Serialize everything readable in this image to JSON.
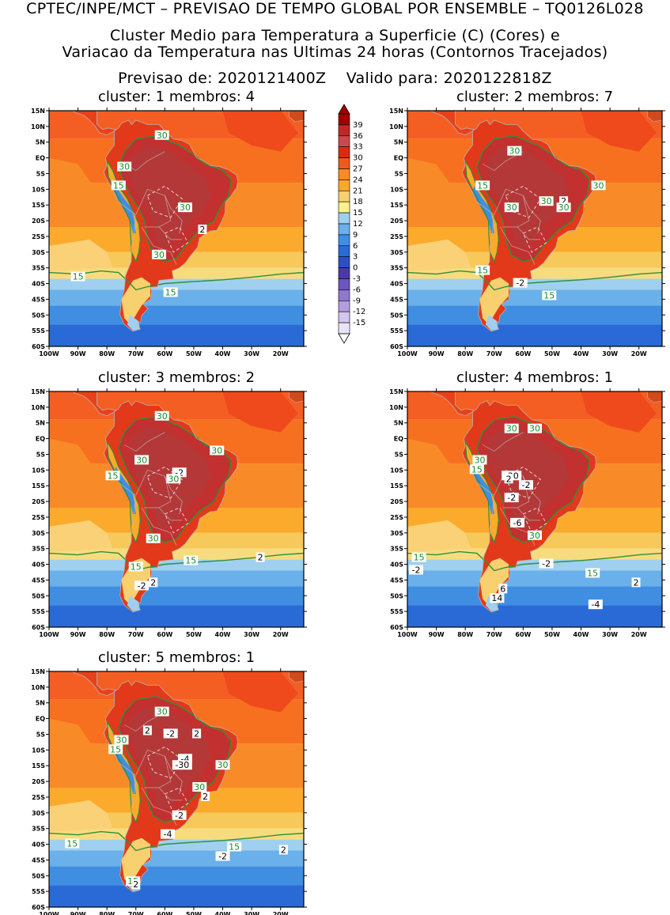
{
  "header": {
    "line1": "CPTEC/INPE/MCT – PREVISAO DE TEMPO GLOBAL POR ENSEMBLE – TQ0126L028",
    "line2": "Cluster Medio para Temperatura a Superficie (C) (Cores) e",
    "line3": "Variacao da Temperatura nas Ultimas 24 horas (Contornos Tracejados)",
    "forecast_label": "Previsao de: 2020121400Z",
    "valid_label": "Valido para: 2020122818Z"
  },
  "axes": {
    "lat_labels": [
      "15N",
      "10N",
      "5N",
      "EQ",
      "5S",
      "10S",
      "15S",
      "20S",
      "25S",
      "30S",
      "35S",
      "40S",
      "45S",
      "50S",
      "55S",
      "60S"
    ],
    "lon_labels": [
      "100W",
      "90W",
      "80W",
      "70W",
      "60W",
      "50W",
      "40W",
      "30W",
      "20W"
    ]
  },
  "colorbar": {
    "levels": [
      "39",
      "36",
      "33",
      "30",
      "27",
      "24",
      "21",
      "18",
      "15",
      "12",
      "9",
      "6",
      "3",
      "0",
      "-3",
      "-6",
      "-9",
      "-12",
      "-15"
    ],
    "colors": [
      "#a00000",
      "#c02828",
      "#c84a4a",
      "#dc2a12",
      "#f2581e",
      "#fb8a26",
      "#fba92a",
      "#f7d070",
      "#fbf28a",
      "#9fd0f0",
      "#6ab0ea",
      "#3f8ee2",
      "#2a6ad6",
      "#2e4fc4",
      "#4a3aa8",
      "#6e55bf",
      "#9077cf",
      "#b39de0",
      "#d4c6ee",
      "#ebe4f6"
    ]
  },
  "panels": [
    {
      "title": "cluster:  1   membros:  4",
      "labels": [
        {
          "t": "30",
          "lon": -61,
          "lat": 7,
          "c": "g"
        },
        {
          "t": "30",
          "lon": -74,
          "lat": -3,
          "c": "g"
        },
        {
          "t": "15",
          "lon": -76,
          "lat": -9,
          "c": "g"
        },
        {
          "t": "30",
          "lon": -53,
          "lat": -16,
          "c": "g"
        },
        {
          "t": "2",
          "lon": -47,
          "lat": -23,
          "c": "w"
        },
        {
          "t": "30",
          "lon": -62,
          "lat": -31,
          "c": "g"
        },
        {
          "t": "15",
          "lon": -90,
          "lat": -38,
          "c": "g"
        },
        {
          "t": "15",
          "lon": -58,
          "lat": -43,
          "c": "g"
        }
      ]
    },
    {
      "title": "cluster:  2   membros:  7",
      "labels": [
        {
          "t": "30",
          "lon": -63,
          "lat": 2,
          "c": "g"
        },
        {
          "t": "15",
          "lon": -74,
          "lat": -9,
          "c": "g"
        },
        {
          "t": "30",
          "lon": -34,
          "lat": -9,
          "c": "g"
        },
        {
          "t": "2",
          "lon": -46,
          "lat": -14,
          "c": "w"
        },
        {
          "t": "30",
          "lon": -52,
          "lat": -14,
          "c": "g"
        },
        {
          "t": "30",
          "lon": -64,
          "lat": -16,
          "c": "g"
        },
        {
          "t": "30",
          "lon": -46,
          "lat": -16,
          "c": "g"
        },
        {
          "t": "15",
          "lon": -74,
          "lat": -36,
          "c": "g"
        },
        {
          "t": "-2",
          "lon": -61,
          "lat": -40,
          "c": "w"
        },
        {
          "t": "15",
          "lon": -51,
          "lat": -44,
          "c": "g"
        }
      ]
    },
    {
      "title": "cluster:  3   membros:  2",
      "labels": [
        {
          "t": "30",
          "lon": -61,
          "lat": 7,
          "c": "g"
        },
        {
          "t": "30",
          "lon": -42,
          "lat": -4,
          "c": "g"
        },
        {
          "t": "30",
          "lon": -68,
          "lat": -7,
          "c": "g"
        },
        {
          "t": "15",
          "lon": -78,
          "lat": -12,
          "c": "g"
        },
        {
          "t": "-2",
          "lon": -55,
          "lat": -11,
          "c": "w"
        },
        {
          "t": "30",
          "lon": -57,
          "lat": -13,
          "c": "g"
        },
        {
          "t": "30",
          "lon": -64,
          "lat": -32,
          "c": "g"
        },
        {
          "t": "15",
          "lon": -70,
          "lat": -41,
          "c": "g"
        },
        {
          "t": "15",
          "lon": -51,
          "lat": -39,
          "c": "g"
        },
        {
          "t": "2",
          "lon": -27,
          "lat": -38,
          "c": "w"
        },
        {
          "t": "-2",
          "lon": -68,
          "lat": -47,
          "c": "w"
        },
        {
          "t": "2",
          "lon": -64,
          "lat": -46,
          "c": "w"
        }
      ]
    },
    {
      "title": "cluster:  4   membros:  1",
      "labels": [
        {
          "t": "30",
          "lon": -64,
          "lat": 3,
          "c": "g"
        },
        {
          "t": "30",
          "lon": -56,
          "lat": 3,
          "c": "g"
        },
        {
          "t": "30",
          "lon": -75,
          "lat": -7,
          "c": "g"
        },
        {
          "t": "15",
          "lon": -76,
          "lat": -10,
          "c": "g"
        },
        {
          "t": "-30",
          "lon": -64,
          "lat": -12,
          "c": "w"
        },
        {
          "t": "2",
          "lon": -65,
          "lat": -13,
          "c": "w"
        },
        {
          "t": "-2",
          "lon": -59,
          "lat": -15,
          "c": "w"
        },
        {
          "t": "-2",
          "lon": -64,
          "lat": -19,
          "c": "w"
        },
        {
          "t": "-6",
          "lon": -62,
          "lat": -27,
          "c": "w"
        },
        {
          "t": "30",
          "lon": -56,
          "lat": -31,
          "c": "g"
        },
        {
          "t": "15",
          "lon": -96,
          "lat": -38,
          "c": "g"
        },
        {
          "t": "-2",
          "lon": -97,
          "lat": -42,
          "c": "w"
        },
        {
          "t": "-2",
          "lon": -52,
          "lat": -40,
          "c": "w"
        },
        {
          "t": "15",
          "lon": -36,
          "lat": -43,
          "c": "g"
        },
        {
          "t": "2",
          "lon": -21,
          "lat": -46,
          "c": "w"
        },
        {
          "t": "6",
          "lon": -67,
          "lat": -48,
          "c": "w"
        },
        {
          "t": "14",
          "lon": -69,
          "lat": -51,
          "c": "w"
        },
        {
          "t": "-4",
          "lon": -35,
          "lat": -53,
          "c": "w"
        }
      ]
    },
    {
      "title": "cluster:  5   membros:  1",
      "labels": [
        {
          "t": "30",
          "lon": -61,
          "lat": 2,
          "c": "g"
        },
        {
          "t": "2",
          "lon": -66,
          "lat": -4,
          "c": "w"
        },
        {
          "t": "-2",
          "lon": -58,
          "lat": -5,
          "c": "w"
        },
        {
          "t": "2",
          "lon": -49,
          "lat": -5,
          "c": "w"
        },
        {
          "t": "30",
          "lon": -75,
          "lat": -7,
          "c": "g"
        },
        {
          "t": "15",
          "lon": -77,
          "lat": -10,
          "c": "g"
        },
        {
          "t": "-4",
          "lon": -53,
          "lat": -13,
          "c": "w"
        },
        {
          "t": "-30",
          "lon": -54,
          "lat": -15,
          "c": "w"
        },
        {
          "t": "30",
          "lon": -40,
          "lat": -15,
          "c": "g"
        },
        {
          "t": "30",
          "lon": -48,
          "lat": -22,
          "c": "g"
        },
        {
          "t": "2",
          "lon": -46,
          "lat": -25,
          "c": "w"
        },
        {
          "t": "-2",
          "lon": -55,
          "lat": -31,
          "c": "w"
        },
        {
          "t": "-4",
          "lon": -59,
          "lat": -37,
          "c": "w"
        },
        {
          "t": "15",
          "lon": -92,
          "lat": -40,
          "c": "g"
        },
        {
          "t": "15",
          "lon": -36,
          "lat": -41,
          "c": "g"
        },
        {
          "t": "2",
          "lon": -19,
          "lat": -42,
          "c": "w"
        },
        {
          "t": "-2",
          "lon": -40,
          "lat": -44,
          "c": "w"
        },
        {
          "t": "15",
          "lon": -71,
          "lat": -52,
          "c": "g"
        },
        {
          "t": "2",
          "lon": -70,
          "lat": -53,
          "c": "w"
        }
      ]
    }
  ]
}
